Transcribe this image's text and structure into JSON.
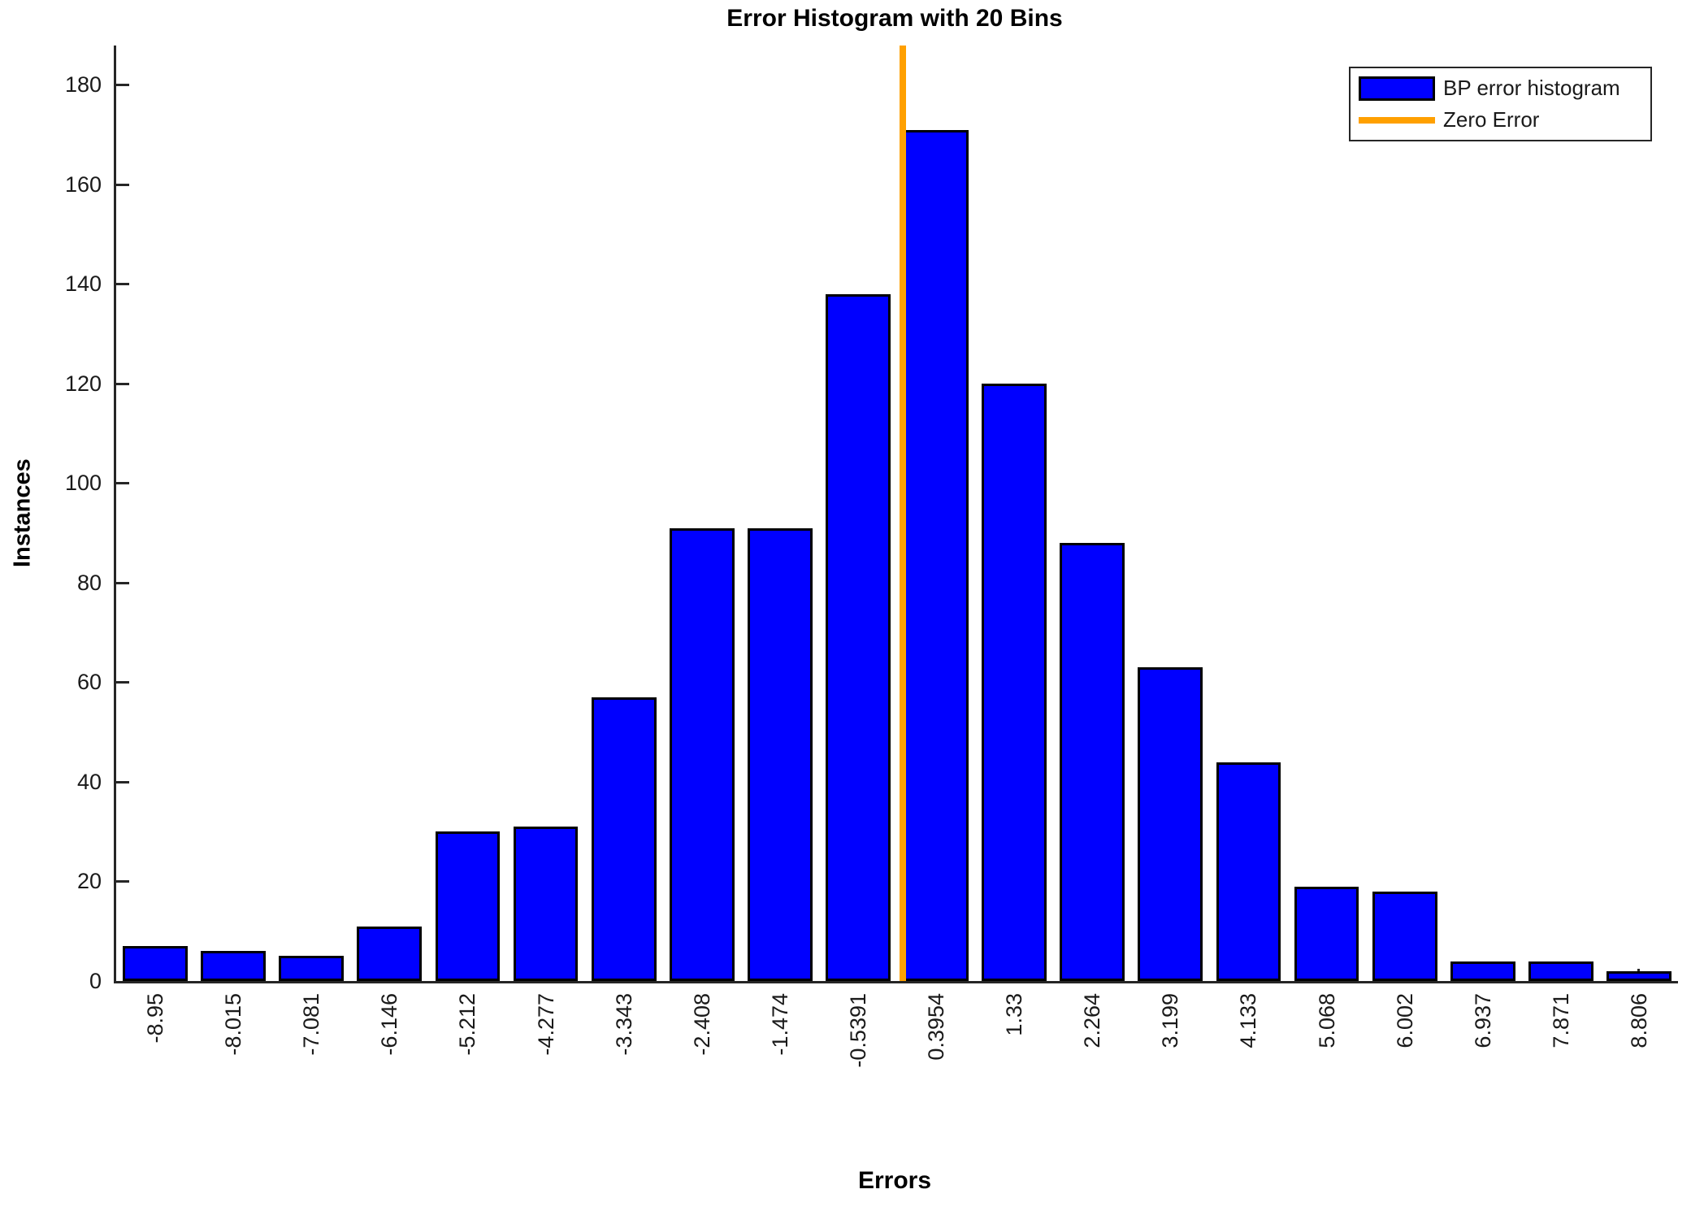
{
  "chart_data": {
    "type": "bar",
    "title": "Error Histogram with 20 Bins",
    "xlabel": "Errors",
    "ylabel": "Instances",
    "categories": [
      "-8.95",
      "-8.015",
      "-7.081",
      "-6.146",
      "-5.212",
      "-4.277",
      "-3.343",
      "-2.408",
      "-1.474",
      "-0.5391",
      "0.3954",
      "1.33",
      "2.264",
      "3.199",
      "4.133",
      "5.068",
      "6.002",
      "6.937",
      "7.871",
      "8.806"
    ],
    "values": [
      7,
      6,
      5,
      11,
      30,
      31,
      57,
      91,
      91,
      138,
      171,
      120,
      88,
      63,
      44,
      19,
      18,
      4,
      4,
      2
    ],
    "yticks": [
      0,
      20,
      40,
      60,
      80,
      100,
      120,
      140,
      160,
      180
    ],
    "ylim": [
      0,
      188
    ],
    "grid": false,
    "legend_position": "top-right",
    "legend": [
      {
        "label": "BP error histogram",
        "type": "bar",
        "color": "#0000FF"
      },
      {
        "label": "Zero Error",
        "type": "line",
        "color": "#FFA000"
      }
    ],
    "bar_color": "#0000FF",
    "bar_edge_color": "#000000",
    "zero_line_value": 0,
    "zero_line_color": "#FFA000"
  }
}
